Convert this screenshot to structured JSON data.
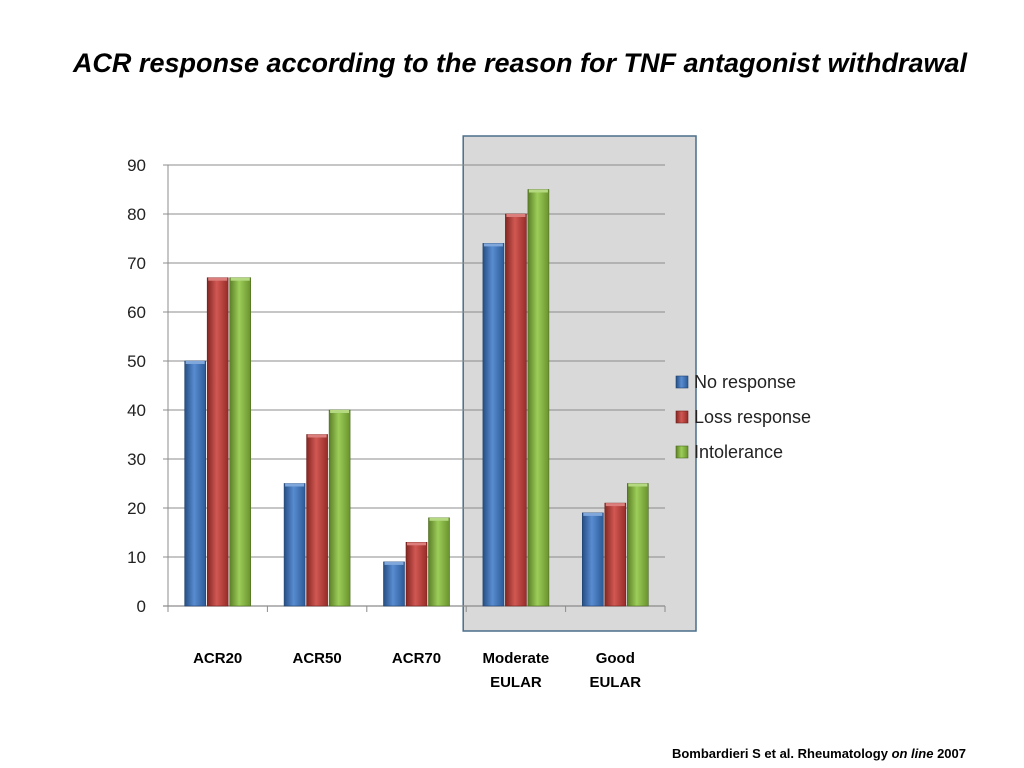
{
  "title": "ACR response according to the reason for TNF antagonist withdrawal",
  "citation": {
    "authors": "Bombardieri S et al. Rheumatology",
    "italic": "on line",
    "year": "2007"
  },
  "chart_data": {
    "type": "bar",
    "categories": [
      [
        "ACR20"
      ],
      [
        "ACR50"
      ],
      [
        "ACR70"
      ],
      [
        "Moderate",
        "EULAR"
      ],
      [
        "Good",
        "EULAR"
      ]
    ],
    "series": [
      {
        "name": "No response",
        "color": "#3a78c9",
        "values": [
          50,
          25,
          9,
          74,
          19
        ]
      },
      {
        "name": "Loss response",
        "color": "#c93a35",
        "values": [
          67,
          35,
          13,
          80,
          21
        ]
      },
      {
        "name": "Intolerance",
        "color": "#8cc43c",
        "values": [
          67,
          40,
          18,
          85,
          25
        ]
      }
    ],
    "ylim": [
      0,
      90
    ],
    "yticks": [
      0,
      10,
      20,
      30,
      40,
      50,
      60,
      70,
      80,
      90
    ],
    "grid": true,
    "legend": "right",
    "highlight_categories": [
      3,
      4
    ]
  }
}
